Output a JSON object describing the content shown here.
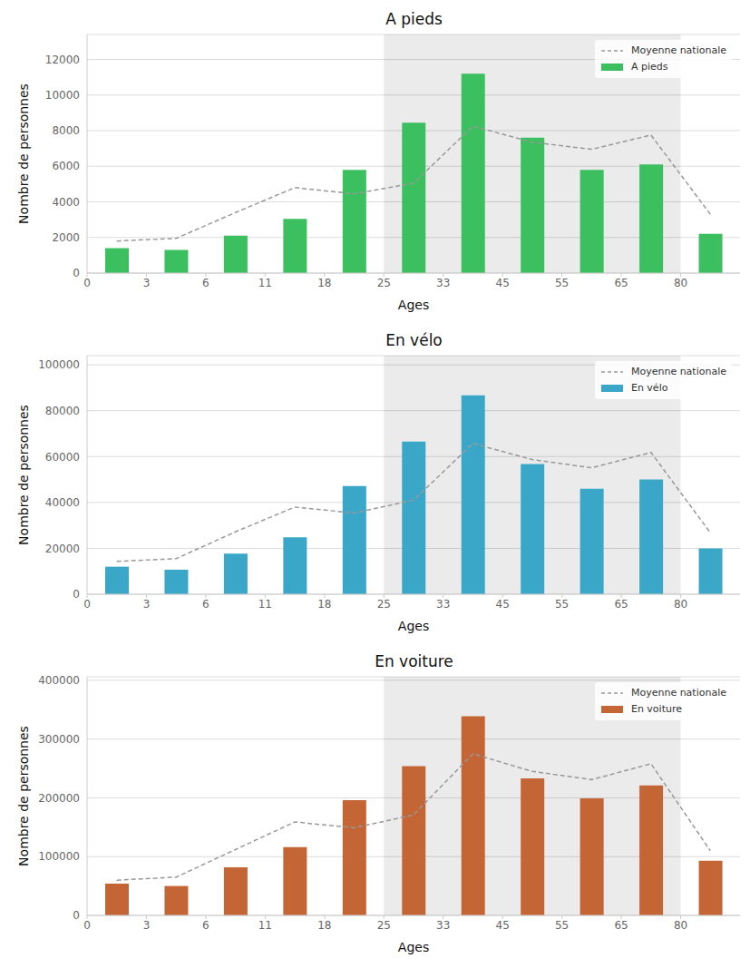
{
  "chart_data": [
    {
      "type": "bar",
      "title": "A pieds",
      "x_label": "Ages",
      "y_label": "Nombre de personnes",
      "categories": [
        "0",
        "3",
        "6",
        "11",
        "18",
        "25",
        "33",
        "45",
        "55",
        "65",
        "80"
      ],
      "ylim": [
        0,
        13400
      ],
      "yticks": [
        0,
        2000,
        4000,
        6000,
        8000,
        10000,
        12000
      ],
      "grid": true,
      "legend": "upper right",
      "highlight": [
        "25",
        "80"
      ],
      "series": [
        {
          "name": "Moyenne nationale",
          "type": "line",
          "color": "#999999",
          "line_style": "dashed",
          "values": [
            1800,
            1950,
            3400,
            4800,
            4450,
            5050,
            8250,
            7350,
            6950,
            7750,
            3300
          ]
        },
        {
          "name": "A pieds",
          "type": "bar",
          "color": "#3bbf5f",
          "values": [
            1400,
            1300,
            2100,
            3050,
            5800,
            8450,
            11200,
            7600,
            5800,
            6100,
            2200
          ]
        }
      ]
    },
    {
      "type": "bar",
      "title": "En vélo",
      "x_label": "Ages",
      "y_label": "Nombre de personnes",
      "categories": [
        "0",
        "3",
        "6",
        "11",
        "18",
        "25",
        "33",
        "45",
        "55",
        "65",
        "80"
      ],
      "ylim": [
        0,
        104000
      ],
      "yticks": [
        0,
        20000,
        40000,
        60000,
        80000,
        100000
      ],
      "grid": true,
      "legend": "upper right",
      "highlight": [
        "25",
        "80"
      ],
      "series": [
        {
          "name": "Moyenne nationale",
          "type": "line",
          "color": "#999999",
          "line_style": "dashed",
          "values": [
            14300,
            15500,
            27200,
            38000,
            35400,
            41000,
            65700,
            58700,
            55100,
            61800,
            26800
          ]
        },
        {
          "name": "En vélo",
          "type": "bar",
          "color": "#3aa6c8",
          "values": [
            12000,
            10700,
            17700,
            24800,
            47200,
            66500,
            86700,
            56700,
            46000,
            50000,
            20000
          ]
        }
      ]
    },
    {
      "type": "bar",
      "title": "En voiture",
      "x_label": "Ages",
      "y_label": "Nombre de personnes",
      "categories": [
        "0",
        "3",
        "6",
        "11",
        "18",
        "25",
        "33",
        "45",
        "55",
        "65",
        "80"
      ],
      "ylim": [
        0,
        406000
      ],
      "yticks": [
        0,
        100000,
        200000,
        300000,
        400000
      ],
      "grid": true,
      "legend": "upper right",
      "highlight": [
        "25",
        "80"
      ],
      "series": [
        {
          "name": "Moyenne nationale",
          "type": "line",
          "color": "#999999",
          "line_style": "dashed",
          "values": [
            60000,
            65000,
            112000,
            159000,
            149000,
            171000,
            275000,
            245000,
            231000,
            258000,
            110000
          ]
        },
        {
          "name": "En voiture",
          "type": "bar",
          "color": "#c46535",
          "values": [
            54000,
            50000,
            82000,
            116000,
            196000,
            254000,
            339000,
            233000,
            199000,
            221000,
            93000
          ]
        }
      ]
    }
  ]
}
